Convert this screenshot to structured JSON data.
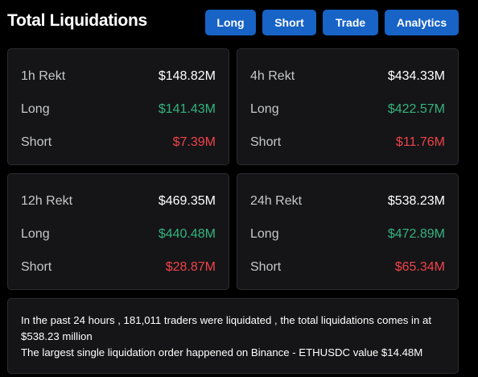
{
  "header": {
    "title": "Total Liquidations",
    "buttons": {
      "long": "Long",
      "short": "Short",
      "trade": "Trade",
      "analytics": "Analytics"
    }
  },
  "cards": [
    {
      "period_label": "1h Rekt",
      "total": "$148.82M",
      "long_label": "Long",
      "long_value": "$141.43M",
      "short_label": "Short",
      "short_value": "$7.39M"
    },
    {
      "period_label": "4h Rekt",
      "total": "$434.33M",
      "long_label": "Long",
      "long_value": "$422.57M",
      "short_label": "Short",
      "short_value": "$11.76M"
    },
    {
      "period_label": "12h Rekt",
      "total": "$469.35M",
      "long_label": "Long",
      "long_value": "$440.48M",
      "short_label": "Short",
      "short_value": "$28.87M"
    },
    {
      "period_label": "24h Rekt",
      "total": "$538.23M",
      "long_label": "Long",
      "long_value": "$472.89M",
      "short_label": "Short",
      "short_value": "$65.34M"
    }
  ],
  "summary": {
    "line1": "In the past 24 hours , 181,011 traders were liquidated , the total liquidations comes in at $538.23 million",
    "line2": "The largest single liquidation order happened on Binance - ETHUSDC value $14.48M"
  },
  "colors": {
    "background": "#000000",
    "card": "#151517",
    "button": "#1763c6",
    "long": "#34b37f",
    "short": "#f0434a"
  }
}
